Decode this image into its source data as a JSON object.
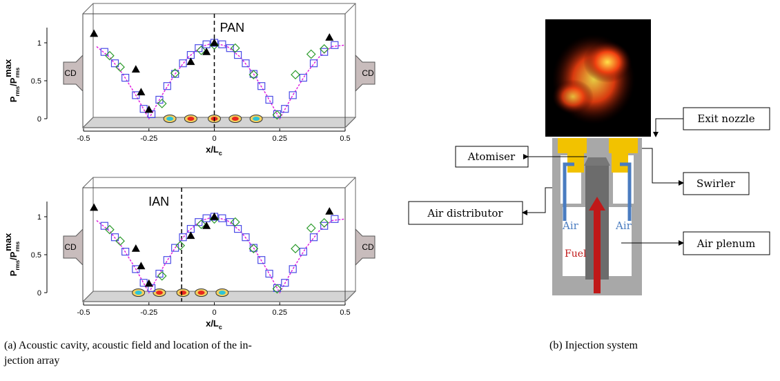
{
  "chart_data": [
    {
      "type": "scatter",
      "annotation": "PAN",
      "marker_line_x": 0,
      "side_label": "CD",
      "x_label": [
        "x/L",
        "c"
      ],
      "y_label": [
        "P",
        "rms",
        "/P",
        "rms",
        "max"
      ],
      "xlim": [
        -0.5,
        0.5
      ],
      "ylim": [
        0,
        1
      ],
      "xticks": [
        -0.5,
        -0.25,
        0,
        0.25,
        0.5
      ],
      "yticks": [
        0,
        0.5,
        1
      ],
      "injector_x": [
        -0.17,
        -0.09,
        0,
        0.08,
        0.16
      ],
      "injector_colors": [
        "#2ec4d6",
        "#e8271c",
        "#e8271c",
        "#e8271c",
        "#2ec4d6"
      ],
      "series": [
        {
          "marker": "line",
          "color": "#e020e0",
          "x": [
            -0.45,
            -0.4,
            -0.35,
            -0.3,
            -0.25,
            -0.2,
            -0.15,
            -0.1,
            -0.05,
            0,
            0.05,
            0.1,
            0.15,
            0.2,
            0.25,
            0.3,
            0.35,
            0.4,
            0.45,
            0.5
          ],
          "values": [
            0.95,
            0.81,
            0.59,
            0.31,
            0,
            0.31,
            0.59,
            0.81,
            0.95,
            1,
            0.95,
            0.81,
            0.59,
            0.31,
            0,
            0.31,
            0.59,
            0.81,
            0.95,
            0.97
          ]
        },
        {
          "marker": "square",
          "color": "#4a4ae6",
          "x": [
            -0.42,
            -0.38,
            -0.34,
            -0.3,
            -0.27,
            -0.24,
            -0.21,
            -0.18,
            -0.15,
            -0.12,
            -0.09,
            -0.06,
            -0.03,
            0,
            0.03,
            0.06,
            0.09,
            0.12,
            0.15,
            0.18,
            0.21,
            0.24,
            0.27,
            0.3,
            0.34,
            0.38,
            0.42,
            0.46
          ],
          "values": [
            0.88,
            0.73,
            0.54,
            0.31,
            0.13,
            0.06,
            0.25,
            0.43,
            0.59,
            0.73,
            0.84,
            0.93,
            0.98,
            1,
            0.98,
            0.93,
            0.84,
            0.73,
            0.59,
            0.43,
            0.25,
            0.06,
            0.13,
            0.31,
            0.54,
            0.73,
            0.88,
            0.97
          ]
        },
        {
          "marker": "diamond",
          "color": "#2a9a2a",
          "x": [
            -0.4,
            -0.36,
            -0.2,
            -0.15,
            -0.05,
            0,
            0.08,
            0.15,
            0.24,
            0.31,
            0.37,
            0.42
          ],
          "values": [
            0.83,
            0.68,
            0.2,
            0.6,
            0.9,
            0.97,
            0.93,
            0.58,
            0.05,
            0.58,
            0.85,
            0.92
          ]
        },
        {
          "marker": "triangle",
          "color": "#000000",
          "x": [
            -0.46,
            -0.3,
            -0.28,
            -0.25,
            -0.09,
            -0.03,
            0,
            0.44
          ],
          "values": [
            1.12,
            0.65,
            0.35,
            0.12,
            0.75,
            0.88,
            1.0,
            1.07
          ]
        }
      ]
    },
    {
      "type": "scatter",
      "annotation": "IAN",
      "marker_line_x": -0.125,
      "side_label": "CD",
      "x_label": [
        "x/L",
        "c"
      ],
      "y_label": [
        "P",
        "rms",
        "/P",
        "rms",
        "max"
      ],
      "xlim": [
        -0.5,
        0.5
      ],
      "ylim": [
        0,
        1
      ],
      "xticks": [
        -0.5,
        -0.25,
        0,
        0.25,
        0.5
      ],
      "yticks": [
        0,
        0.5,
        1
      ],
      "injector_x": [
        -0.29,
        -0.21,
        -0.12,
        -0.05,
        0.03
      ],
      "injector_colors": [
        "#2ec4d6",
        "#e8271c",
        "#e8271c",
        "#e8271c",
        "#2ec4d6"
      ],
      "series": [
        {
          "marker": "line",
          "color": "#e020e0",
          "x": [
            -0.45,
            -0.4,
            -0.35,
            -0.3,
            -0.25,
            -0.2,
            -0.15,
            -0.1,
            -0.05,
            0,
            0.05,
            0.1,
            0.15,
            0.2,
            0.25,
            0.3,
            0.35,
            0.4,
            0.45,
            0.5
          ],
          "values": [
            0.95,
            0.81,
            0.59,
            0.31,
            0,
            0.31,
            0.59,
            0.81,
            0.95,
            1,
            0.95,
            0.81,
            0.59,
            0.31,
            0,
            0.31,
            0.59,
            0.81,
            0.95,
            0.97
          ]
        },
        {
          "marker": "square",
          "color": "#4a4ae6",
          "x": [
            -0.42,
            -0.38,
            -0.34,
            -0.3,
            -0.27,
            -0.24,
            -0.21,
            -0.18,
            -0.15,
            -0.12,
            -0.09,
            -0.06,
            -0.03,
            0,
            0.03,
            0.06,
            0.09,
            0.12,
            0.15,
            0.18,
            0.21,
            0.24,
            0.27,
            0.3,
            0.34,
            0.38,
            0.42,
            0.46
          ],
          "values": [
            0.88,
            0.73,
            0.54,
            0.31,
            0.13,
            0.06,
            0.25,
            0.43,
            0.59,
            0.73,
            0.84,
            0.93,
            0.98,
            1,
            0.98,
            0.93,
            0.84,
            0.73,
            0.59,
            0.43,
            0.25,
            0.06,
            0.13,
            0.31,
            0.54,
            0.73,
            0.88,
            0.97
          ]
        },
        {
          "marker": "diamond",
          "color": "#2a9a2a",
          "x": [
            -0.4,
            -0.36,
            -0.2,
            -0.13,
            -0.05,
            0,
            0.08,
            0.15,
            0.24,
            0.31,
            0.37,
            0.42
          ],
          "values": [
            0.83,
            0.68,
            0.22,
            0.62,
            0.9,
            0.97,
            0.93,
            0.58,
            0.05,
            0.58,
            0.85,
            0.92
          ]
        },
        {
          "marker": "triangle",
          "color": "#000000",
          "x": [
            -0.46,
            -0.3,
            -0.28,
            -0.25,
            -0.09,
            -0.03,
            0,
            0.44
          ],
          "values": [
            1.12,
            0.58,
            0.35,
            0.12,
            0.75,
            0.88,
            1.0,
            1.07
          ]
        }
      ]
    }
  ],
  "diagram": {
    "labels": {
      "exit_nozzle": "Exit nozzle",
      "atomiser": "Atomiser",
      "swirler": "Swirler",
      "air_distributor": "Air distributor",
      "air_plenum": "Air plenum",
      "air": "Air",
      "fuel": "Fuel"
    }
  },
  "captions": {
    "a": [
      "(a) Acoustic cavity, acoustic field and location of the in-",
      "jection array"
    ],
    "b": "(b) Injection system"
  }
}
